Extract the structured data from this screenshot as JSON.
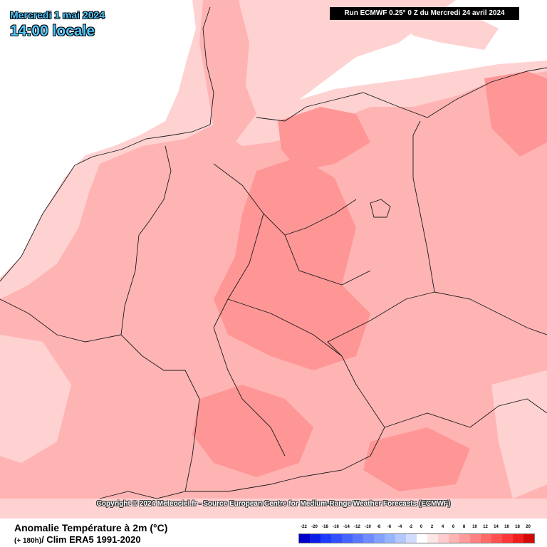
{
  "header": {
    "date": "Mercredi 1 mai 2024",
    "time": "14:00 locale",
    "run": "Run ECMWF 0.25° 0 Z du Mercredi 24 avril 2024"
  },
  "copyright": "Copyright © 2024 Meteociel.fr - Source European Centre for Medium-Range Weather Forecasts (ECMWF)",
  "footer": {
    "title": "Anomalie Température à 2m (°C)",
    "lead": "(+ 180h)",
    "clim": "/ Clim ERA5 1991-2020"
  },
  "scale": {
    "labels": [
      "-22",
      "-20",
      "-18",
      "-16",
      "-14",
      "-12",
      "-10",
      "-8",
      "-6",
      "-4",
      "-2",
      "0",
      "2",
      "4",
      "6",
      "8",
      "10",
      "12",
      "14",
      "16",
      "18",
      "20"
    ],
    "colors": [
      "#0000c8",
      "#0a1ee6",
      "#1e3cff",
      "#3250ff",
      "#4664ff",
      "#5a78ff",
      "#6e8cff",
      "#82a0ff",
      "#96b4ff",
      "#b4c8ff",
      "#d2dcff",
      "#ffffff",
      "#ffe6e6",
      "#ffcdcd",
      "#ffb4b4",
      "#ff9b9b",
      "#ff8282",
      "#ff6969",
      "#ff5050",
      "#ff3737",
      "#f01e1e",
      "#d20a0a"
    ]
  },
  "map": {
    "colors": {
      "sea": "#ffffff",
      "light": "#ffd2d2",
      "medium": "#ffb4b4",
      "strong": "#ff9696",
      "border": "#1a1a1a"
    }
  }
}
